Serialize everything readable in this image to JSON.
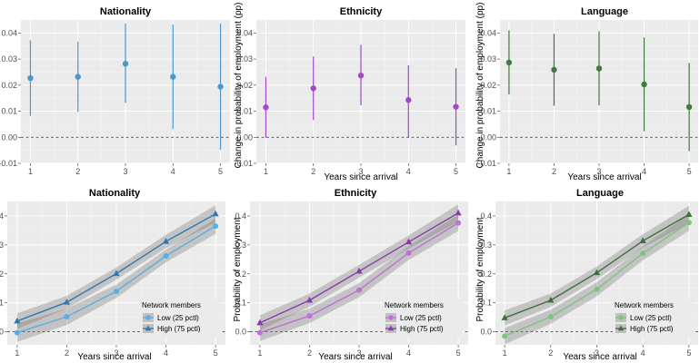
{
  "legend_title": "Network members",
  "chart_data": [
    {
      "type": "scatter",
      "title": "Nationality",
      "xlabel": "",
      "ylabel": "",
      "x": [
        1,
        2,
        3,
        4,
        5
      ],
      "ylim": [
        -0.01,
        0.045
      ],
      "xticks": [
        1,
        2,
        3,
        4,
        5
      ],
      "yticks": [
        -0.01,
        0.0,
        0.01,
        0.02,
        0.03,
        0.04
      ],
      "ytick_labels": [
        "-0.01",
        "0.00",
        "0.01",
        "0.02",
        "0.03",
        "0.04"
      ],
      "hline": 0,
      "grid": true,
      "series": [
        {
          "color": "#4a98cc",
          "values": [
            0.0227,
            0.0232,
            0.0282,
            0.0232,
            0.0194
          ],
          "lower": [
            0.0082,
            0.0097,
            0.0132,
            0.0032,
            -0.0048
          ],
          "upper": [
            0.0372,
            0.0367,
            0.0437,
            0.0432,
            0.0436
          ]
        }
      ]
    },
    {
      "type": "scatter",
      "title": "Ethnicity",
      "xlabel": "Years since arrival",
      "ylabel": "Change in probability of employment (pp)",
      "x": [
        1,
        2,
        3,
        4,
        5
      ],
      "ylim": [
        -0.01,
        0.045
      ],
      "xticks": [
        1,
        2,
        3,
        4,
        5
      ],
      "yticks": [
        -0.01,
        0.0,
        0.01,
        0.02,
        0.03,
        0.04
      ],
      "ytick_labels": [
        "-0.01",
        "0.00",
        "0.01",
        "0.02",
        "0.03",
        "0.04"
      ],
      "hline": 0,
      "grid": true,
      "series": [
        {
          "color": "#a548c8",
          "values": [
            0.0115,
            0.0188,
            0.0237,
            0.0143,
            0.0117
          ],
          "lower": [
            -0.0002,
            0.0066,
            0.0123,
            -0.0003,
            -0.0031
          ],
          "upper": [
            0.0232,
            0.031,
            0.0355,
            0.0276,
            0.0265
          ]
        }
      ]
    },
    {
      "type": "scatter",
      "title": "Language",
      "xlabel": "Years since arrival",
      "ylabel": "Change in probability of employment (pp)",
      "x": [
        1,
        2,
        3,
        4,
        5
      ],
      "ylim": [
        -0.01,
        0.045
      ],
      "xticks": [
        1,
        2,
        3,
        4,
        5
      ],
      "yticks": [
        -0.01,
        0.0,
        0.01,
        0.02,
        0.03,
        0.04
      ],
      "ytick_labels": [
        "-0.01",
        "0.00",
        "0.01",
        "0.02",
        "0.03",
        "0.04"
      ],
      "hline": 0,
      "grid": true,
      "series": [
        {
          "color": "#3e7b3e",
          "values": [
            0.0287,
            0.0259,
            0.0264,
            0.0203,
            0.0116
          ],
          "lower": [
            0.0164,
            0.0121,
            0.0122,
            0.0023,
            -0.0053
          ],
          "upper": [
            0.041,
            0.0397,
            0.0406,
            0.0383,
            0.0285
          ]
        }
      ]
    },
    {
      "type": "line",
      "title": "Nationality",
      "xlabel": "Years since arrival",
      "ylabel": "",
      "x": [
        1,
        2,
        3,
        4,
        5
      ],
      "ylim": [
        -0.045,
        0.45
      ],
      "xticks": [
        1,
        2,
        3,
        4,
        5
      ],
      "yticks": [
        0.0,
        0.1,
        0.2,
        0.3,
        0.4
      ],
      "ytick_labels": [
        ".0",
        ".1",
        ".2",
        ".3",
        ".4"
      ],
      "hline": 0,
      "grid": true,
      "legend": "bottom-right",
      "series": [
        {
          "name": "Low (25 pctl)",
          "color": "#5aaee0",
          "marker": "circle",
          "values": [
            -0.003,
            0.052,
            0.14,
            0.262,
            0.365
          ],
          "lower": [
            -0.035,
            0.024,
            0.117,
            0.24,
            0.338
          ],
          "upper": [
            0.029,
            0.08,
            0.163,
            0.284,
            0.392
          ]
        },
        {
          "name": "High (75 pctl)",
          "color": "#2f78b0",
          "marker": "triangle",
          "values": [
            0.037,
            0.102,
            0.201,
            0.312,
            0.407
          ],
          "lower": [
            0.01,
            0.08,
            0.18,
            0.289,
            0.377
          ],
          "upper": [
            0.064,
            0.124,
            0.222,
            0.335,
            0.437
          ]
        }
      ]
    },
    {
      "type": "line",
      "title": "Ethnicity",
      "xlabel": "Years since arrival",
      "ylabel": "Probability of employment",
      "x": [
        1,
        2,
        3,
        4,
        5
      ],
      "ylim": [
        -0.045,
        0.45
      ],
      "xticks": [
        1,
        2,
        3,
        4,
        5
      ],
      "yticks": [
        0.0,
        0.1,
        0.2,
        0.3,
        0.4
      ],
      "ytick_labels": [
        "0.0",
        "0.1",
        "0.2",
        "0.3",
        "0.4"
      ],
      "hline": 0,
      "grid": true,
      "legend": "bottom-right",
      "series": [
        {
          "name": "Low (25 pctl)",
          "color": "#c06fd6",
          "marker": "circle",
          "values": [
            -0.003,
            0.055,
            0.144,
            0.272,
            0.376
          ],
          "lower": [
            -0.032,
            0.03,
            0.12,
            0.248,
            0.348
          ],
          "upper": [
            0.026,
            0.08,
            0.168,
            0.296,
            0.404
          ]
        },
        {
          "name": "High (75 pctl)",
          "color": "#8a3aaa",
          "marker": "triangle",
          "values": [
            0.031,
            0.109,
            0.209,
            0.31,
            0.41
          ],
          "lower": [
            0.005,
            0.086,
            0.187,
            0.287,
            0.38
          ],
          "upper": [
            0.057,
            0.132,
            0.231,
            0.333,
            0.44
          ]
        }
      ]
    },
    {
      "type": "line",
      "title": "Language",
      "xlabel": "Years since arrival",
      "ylabel": "Probability of employment",
      "x": [
        1,
        2,
        3,
        4,
        5
      ],
      "ylim": [
        -0.045,
        0.45
      ],
      "xticks": [
        1,
        2,
        3,
        4,
        5
      ],
      "yticks": [
        0.0,
        0.1,
        0.2,
        0.3,
        0.4
      ],
      "ytick_labels": [
        "0.0",
        "0.1",
        "0.2",
        "0.3",
        "0.4"
      ],
      "hline": 0,
      "grid": true,
      "legend": "bottom-right",
      "series": [
        {
          "name": "Low (25 pctl)",
          "color": "#7ec47e",
          "marker": "circle",
          "values": [
            -0.015,
            0.052,
            0.147,
            0.271,
            0.377
          ],
          "lower": [
            -0.043,
            0.028,
            0.123,
            0.247,
            0.349
          ],
          "upper": [
            0.013,
            0.076,
            0.171,
            0.295,
            0.405
          ]
        },
        {
          "name": "High (75 pctl)",
          "color": "#3f6e3f",
          "marker": "triangle",
          "values": [
            0.048,
            0.109,
            0.204,
            0.314,
            0.405
          ],
          "lower": [
            0.022,
            0.086,
            0.182,
            0.291,
            0.375
          ],
          "upper": [
            0.074,
            0.132,
            0.226,
            0.337,
            0.435
          ]
        }
      ]
    }
  ]
}
